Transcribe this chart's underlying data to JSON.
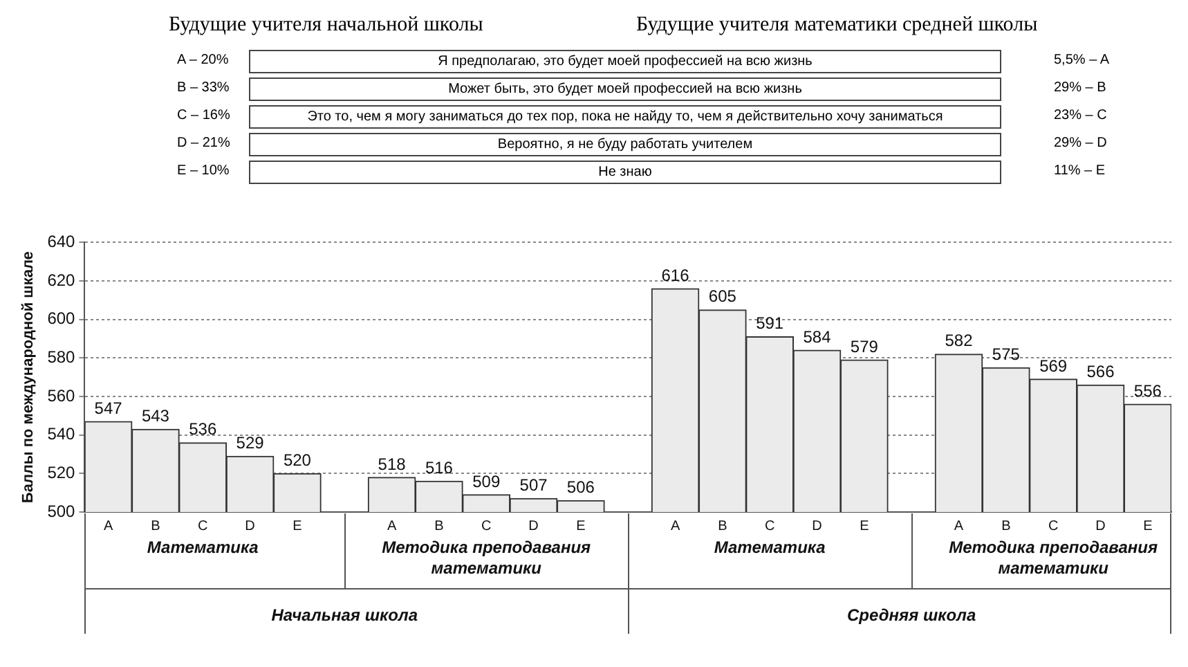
{
  "chart_data": {
    "type": "bar",
    "ylabel": "Баллы по международной шкале",
    "categories": [
      "A",
      "B",
      "C",
      "D",
      "E",
      null,
      "A",
      "B",
      "C",
      "D",
      "E",
      null,
      "A",
      "B",
      "C",
      "D",
      "E",
      null,
      "A",
      "B",
      "C",
      "D",
      "E"
    ],
    "values": [
      547,
      543,
      536,
      529,
      520,
      null,
      518,
      516,
      509,
      507,
      506,
      null,
      616,
      605,
      591,
      584,
      579,
      null,
      582,
      575,
      569,
      566,
      556
    ],
    "color": "#ebebeb",
    "ylim": [
      500,
      640
    ],
    "yticks": [
      500,
      520,
      540,
      560,
      580,
      600,
      620,
      640
    ],
    "grid": "y",
    "data_labels": true,
    "annotations": [
      "Будущие учителя начальной школы",
      "Будущие учителя математики средней школы",
      "A – 20%",
      "B – 33%",
      "C – 16%",
      "D – 21%",
      "E – 10%",
      "Я предполагаю, это будет моей профессией на всю жизнь",
      "Может быть, это будет моей профессией на всю жизнь",
      "Это то, чем я могу заниматься до тех пор, пока не найду то, чем я действительно хочу заниматься",
      "Вероятно, я не буду работать учителем",
      "Не знаю",
      "5,5% – A",
      "29% – B",
      "23% – C",
      "29% – D",
      "11% – E",
      "Математика",
      "Методика преподавания математики",
      "Математика",
      "Методика преподавания математики",
      "Начальная школа",
      "Средняя школа"
    ]
  }
}
